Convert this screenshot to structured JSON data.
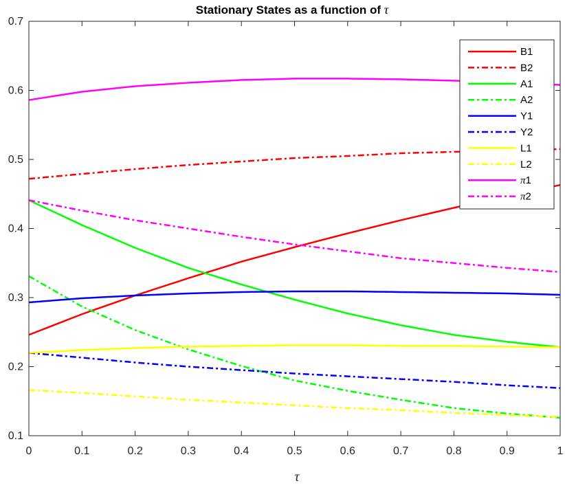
{
  "chart_data": {
    "type": "line",
    "title": "Stationary States as a function of ",
    "title_symbol": "τ",
    "xlabel": "τ",
    "ylabel": "",
    "xlim": [
      0,
      1
    ],
    "ylim": [
      0.1,
      0.7
    ],
    "x_ticks": [
      0,
      0.1,
      0.2,
      0.3,
      0.4,
      0.5,
      0.6,
      0.7,
      0.8,
      0.9,
      1
    ],
    "y_ticks": [
      0.1,
      0.2,
      0.3,
      0.4,
      0.5,
      0.6,
      0.7
    ],
    "x_tick_labels": [
      "0",
      "0.1",
      "0.2",
      "0.3",
      "0.4",
      "0.5",
      "0.6",
      "0.7",
      "0.8",
      "0.9",
      "1"
    ],
    "y_tick_labels": [
      "0.1",
      "0.2",
      "0.3",
      "0.4",
      "0.5",
      "0.6",
      "0.7"
    ],
    "grid": false,
    "legend_position": "top-right",
    "x": [
      0,
      0.1,
      0.2,
      0.3,
      0.4,
      0.5,
      0.6,
      0.7,
      0.8,
      0.9,
      1
    ],
    "series": [
      {
        "name": "B1",
        "name_prefix": "",
        "name_suffix": "B1",
        "color": "#ff0000",
        "dash": "solid",
        "values": [
          0.246,
          0.276,
          0.303,
          0.328,
          0.352,
          0.373,
          0.393,
          0.412,
          0.43,
          0.447,
          0.463
        ]
      },
      {
        "name": "B2",
        "name_prefix": "",
        "name_suffix": "B2",
        "color": "#ff0000",
        "dash": "dashdot",
        "values": [
          0.472,
          0.479,
          0.486,
          0.492,
          0.497,
          0.502,
          0.505,
          0.509,
          0.511,
          0.513,
          0.515
        ]
      },
      {
        "name": "A1",
        "name_prefix": "",
        "name_suffix": "A1",
        "color": "#00ff00",
        "dash": "solid",
        "values": [
          0.441,
          0.405,
          0.372,
          0.343,
          0.319,
          0.297,
          0.277,
          0.26,
          0.246,
          0.236,
          0.228
        ]
      },
      {
        "name": "A2",
        "name_prefix": "",
        "name_suffix": "A2",
        "color": "#00ff00",
        "dash": "dashdot",
        "values": [
          0.331,
          0.287,
          0.253,
          0.225,
          0.201,
          0.18,
          0.165,
          0.152,
          0.14,
          0.132,
          0.126
        ]
      },
      {
        "name": "Y1",
        "name_prefix": "",
        "name_suffix": "Y1",
        "color": "#0000ff",
        "dash": "solid",
        "values": [
          0.293,
          0.299,
          0.303,
          0.306,
          0.308,
          0.309,
          0.309,
          0.308,
          0.307,
          0.306,
          0.304
        ]
      },
      {
        "name": "Y2",
        "name_prefix": "",
        "name_suffix": "Y2",
        "color": "#0000ff",
        "dash": "dashdot",
        "values": [
          0.22,
          0.213,
          0.206,
          0.2,
          0.195,
          0.19,
          0.186,
          0.182,
          0.178,
          0.173,
          0.169
        ]
      },
      {
        "name": "L1",
        "name_prefix": "",
        "name_suffix": "L1",
        "color": "#ffff00",
        "dash": "solid",
        "values": [
          0.22,
          0.224,
          0.227,
          0.229,
          0.23,
          0.231,
          0.231,
          0.23,
          0.23,
          0.229,
          0.228
        ]
      },
      {
        "name": "L2",
        "name_prefix": "",
        "name_suffix": "L2",
        "color": "#ffff00",
        "dash": "dashdot",
        "values": [
          0.166,
          0.162,
          0.157,
          0.152,
          0.148,
          0.144,
          0.14,
          0.137,
          0.133,
          0.13,
          0.127
        ]
      },
      {
        "name": "π1",
        "name_prefix": "π",
        "name_suffix": "1",
        "color": "#ff00ff",
        "dash": "solid",
        "values": [
          0.586,
          0.598,
          0.606,
          0.611,
          0.615,
          0.617,
          0.617,
          0.616,
          0.614,
          0.611,
          0.608
        ]
      },
      {
        "name": "π2",
        "name_prefix": "π",
        "name_suffix": "2",
        "color": "#ff00ff",
        "dash": "dashdot",
        "values": [
          0.441,
          0.426,
          0.412,
          0.4,
          0.388,
          0.377,
          0.367,
          0.357,
          0.35,
          0.343,
          0.337
        ]
      }
    ]
  }
}
